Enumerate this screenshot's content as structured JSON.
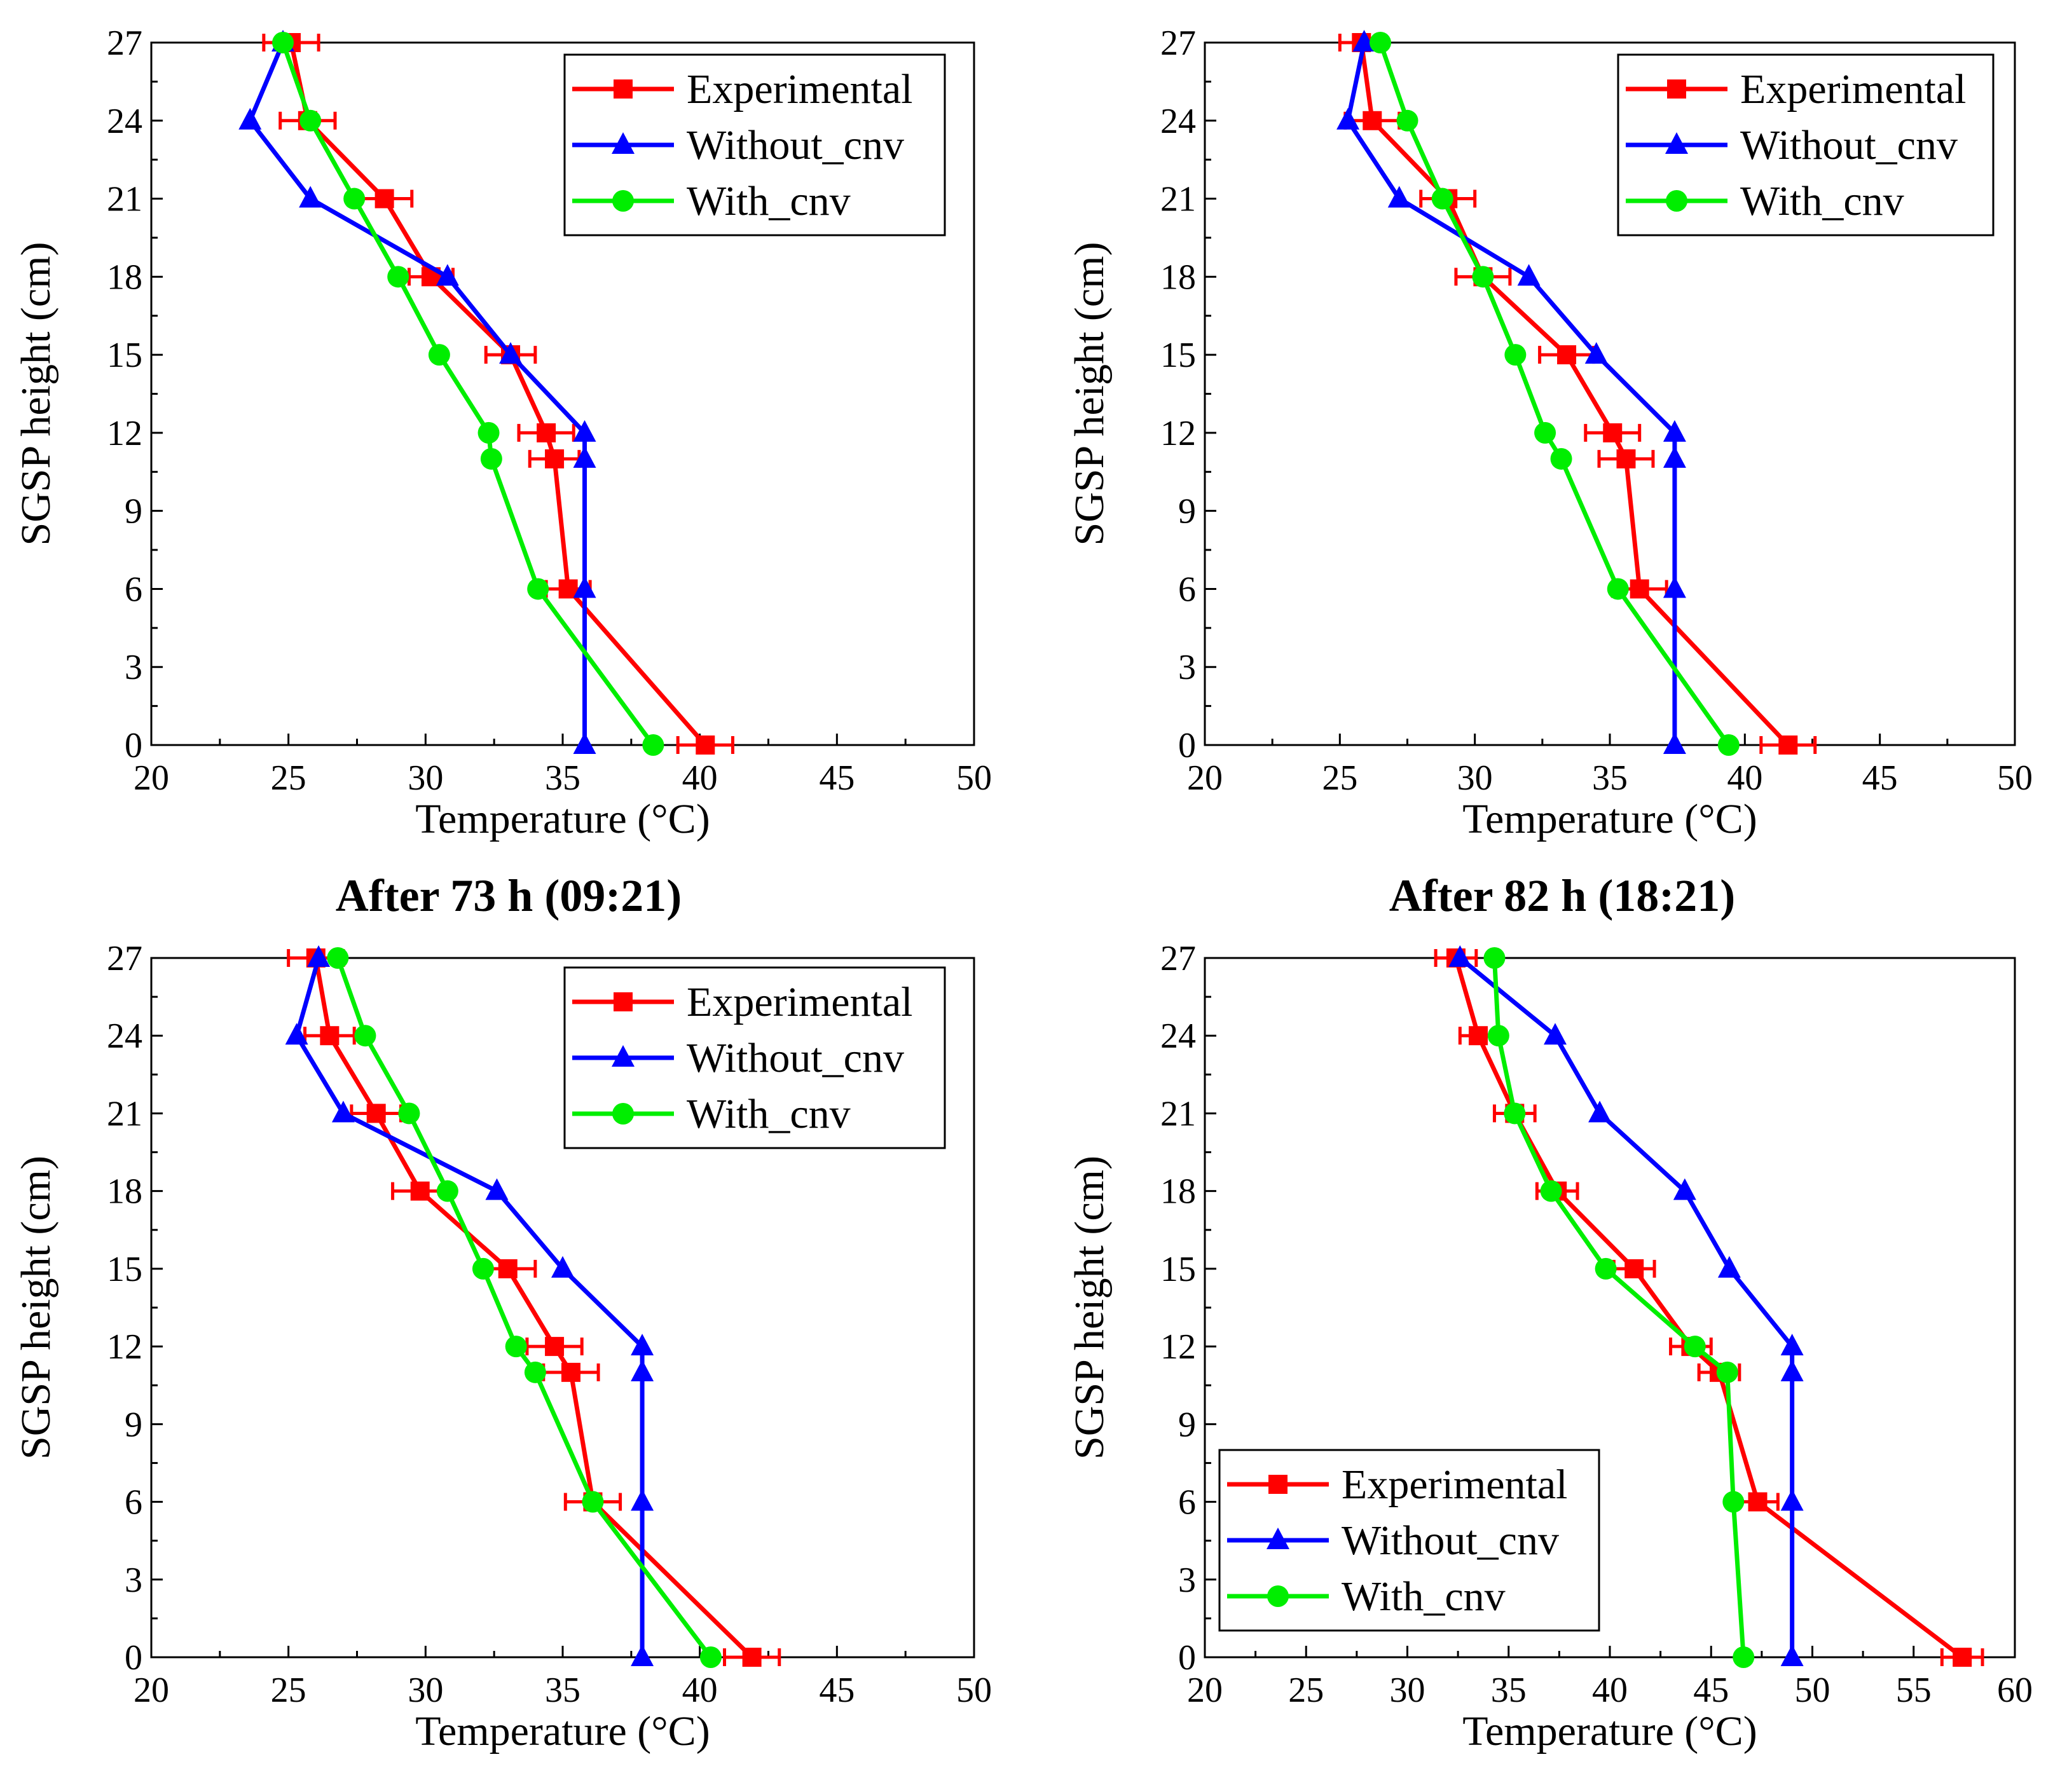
{
  "figure": {
    "panel_titles": [
      "After 73 h (09:21)",
      "After 82 h (18:21)"
    ]
  },
  "chart_data": [
    {
      "type": "line",
      "title": "",
      "xlabel": "Temperature (°C)",
      "ylabel": "SGSP height (cm)",
      "xlim": [
        20,
        50
      ],
      "ylim": [
        0,
        27
      ],
      "xticks": [
        "20",
        "25",
        "30",
        "35",
        "40",
        "45",
        "50"
      ],
      "yticks": [
        "0",
        "3",
        "6",
        "9",
        "12",
        "15",
        "18",
        "21",
        "24",
        "27"
      ],
      "legend_position": "top-right",
      "grid": false,
      "series": [
        {
          "name": "Experimental",
          "color": "#ff0000",
          "marker": "square",
          "x": [
            40.2,
            35.2,
            34.7,
            34.4,
            33.1,
            30.2,
            28.5,
            25.7,
            25.1
          ],
          "y": [
            0,
            6,
            11,
            12,
            15,
            18,
            21,
            24,
            27
          ],
          "xerr": [
            1,
            0.8,
            0.9,
            1,
            0.9,
            0.8,
            1,
            1,
            1
          ]
        },
        {
          "name": "Without_cnv",
          "color": "#0000ff",
          "marker": "triangle",
          "x": [
            35.8,
            35.8,
            35.8,
            35.8,
            33.1,
            30.8,
            25.8,
            23.6,
            24.8
          ],
          "y": [
            0,
            6,
            11,
            12,
            15,
            18,
            21,
            24,
            27
          ]
        },
        {
          "name": "With_cnv",
          "color": "#00ee00",
          "marker": "circle",
          "x": [
            38.3,
            34.1,
            32.4,
            32.3,
            30.5,
            29.0,
            27.4,
            25.8,
            24.8
          ],
          "y": [
            0,
            6,
            11,
            12,
            15,
            18,
            21,
            24,
            27
          ]
        }
      ]
    },
    {
      "type": "line",
      "title": "",
      "xlabel": "Temperature (°C)",
      "ylabel": "SGSP height (cm)",
      "xlim": [
        20,
        50
      ],
      "ylim": [
        0,
        27
      ],
      "xticks": [
        "20",
        "25",
        "30",
        "35",
        "40",
        "45",
        "50"
      ],
      "yticks": [
        "0",
        "3",
        "6",
        "9",
        "12",
        "15",
        "18",
        "21",
        "24",
        "27"
      ],
      "legend_position": "top-right",
      "grid": false,
      "series": [
        {
          "name": "Experimental",
          "color": "#ff0000",
          "marker": "square",
          "x": [
            41.6,
            36.1,
            35.6,
            35.1,
            33.4,
            30.3,
            29.0,
            26.2,
            25.8
          ],
          "y": [
            0,
            6,
            11,
            12,
            15,
            18,
            21,
            24,
            27
          ],
          "xerr": [
            1,
            1,
            1,
            1,
            1,
            1,
            1,
            1,
            0.8
          ]
        },
        {
          "name": "Without_cnv",
          "color": "#0000ff",
          "marker": "triangle",
          "x": [
            37.4,
            37.4,
            37.4,
            37.4,
            34.5,
            32.0,
            27.2,
            25.3,
            25.9
          ],
          "y": [
            0,
            6,
            11,
            12,
            15,
            18,
            21,
            24,
            27
          ]
        },
        {
          "name": "With_cnv",
          "color": "#00ee00",
          "marker": "circle",
          "x": [
            39.4,
            35.3,
            33.2,
            32.6,
            31.5,
            30.3,
            28.8,
            27.5,
            26.5
          ],
          "y": [
            0,
            6,
            11,
            12,
            15,
            18,
            21,
            24,
            27
          ]
        }
      ]
    },
    {
      "type": "line",
      "title": "After 73 h (09:21)",
      "xlabel": "Temperature (°C)",
      "ylabel": "SGSP height (cm)",
      "xlim": [
        20,
        50
      ],
      "ylim": [
        0,
        27
      ],
      "xticks": [
        "20",
        "25",
        "30",
        "35",
        "40",
        "45",
        "50"
      ],
      "yticks": [
        "0",
        "3",
        "6",
        "9",
        "12",
        "15",
        "18",
        "21",
        "24",
        "27"
      ],
      "legend_position": "top-right",
      "grid": false,
      "series": [
        {
          "name": "Experimental",
          "color": "#ff0000",
          "marker": "square",
          "x": [
            41.9,
            36.1,
            35.3,
            34.7,
            33.0,
            29.8,
            28.2,
            26.5,
            26.0
          ],
          "y": [
            0,
            6,
            11,
            12,
            15,
            18,
            21,
            24,
            27
          ],
          "xerr": [
            1,
            1,
            1,
            1,
            1,
            1,
            0.9,
            0.9,
            1
          ]
        },
        {
          "name": "Without_cnv",
          "color": "#0000ff",
          "marker": "triangle",
          "x": [
            37.9,
            37.9,
            37.9,
            37.9,
            35.0,
            32.6,
            27.0,
            25.3,
            26.1
          ],
          "y": [
            0,
            6,
            11,
            12,
            15,
            18,
            21,
            24,
            27
          ]
        },
        {
          "name": "With_cnv",
          "color": "#00ee00",
          "marker": "circle",
          "x": [
            40.4,
            36.1,
            34.0,
            33.3,
            32.1,
            30.8,
            29.4,
            27.8,
            26.8
          ],
          "y": [
            0,
            6,
            11,
            12,
            15,
            18,
            21,
            24,
            27
          ]
        }
      ]
    },
    {
      "type": "line",
      "title": "After 82 h (18:21)",
      "xlabel": "Temperature (°C)",
      "ylabel": "SGSP height (cm)",
      "xlim": [
        20,
        60
      ],
      "ylim": [
        0,
        27
      ],
      "xticks": [
        "20",
        "25",
        "30",
        "35",
        "40",
        "45",
        "50",
        "55",
        "60"
      ],
      "yticks": [
        "0",
        "3",
        "6",
        "9",
        "12",
        "15",
        "18",
        "21",
        "24",
        "27"
      ],
      "legend_position": "bottom-left",
      "grid": false,
      "series": [
        {
          "name": "Experimental",
          "color": "#ff0000",
          "marker": "square",
          "x": [
            57.4,
            47.3,
            45.4,
            44.0,
            41.2,
            37.4,
            35.3,
            33.5,
            32.4
          ],
          "y": [
            0,
            6,
            11,
            12,
            15,
            18,
            21,
            24,
            27
          ],
          "xerr": [
            1,
            1,
            1,
            1,
            1,
            1,
            1,
            0.9,
            1
          ]
        },
        {
          "name": "Without_cnv",
          "color": "#0000ff",
          "marker": "triangle",
          "x": [
            49.0,
            49.0,
            49.0,
            49.0,
            45.9,
            43.7,
            39.5,
            37.3,
            32.6
          ],
          "y": [
            0,
            6,
            11,
            12,
            15,
            18,
            21,
            24,
            27
          ]
        },
        {
          "name": "With_cnv",
          "color": "#00ee00",
          "marker": "circle",
          "x": [
            46.6,
            46.1,
            45.8,
            44.2,
            39.8,
            37.1,
            35.3,
            34.5,
            34.3
          ],
          "y": [
            0,
            6,
            11,
            12,
            15,
            18,
            21,
            24,
            27
          ]
        }
      ]
    }
  ]
}
